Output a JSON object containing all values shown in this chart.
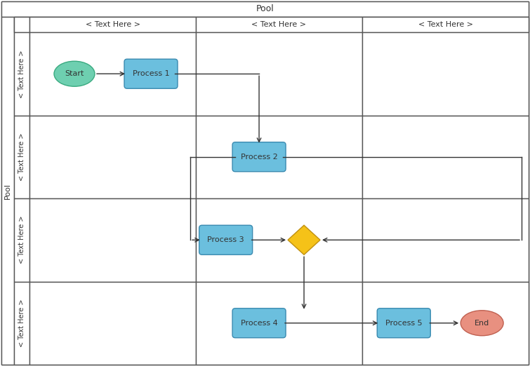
{
  "pool_label": "Pool",
  "side_label": "Pool",
  "col_headers": [
    "< Text Here >",
    "< Text Here >",
    "< Text Here >"
  ],
  "row_headers": [
    "< Text Here >",
    "< Text Here >",
    "< Text Here >",
    "< Text Here >"
  ],
  "bg_color": "#ffffff",
  "start_color": "#6ecfb0",
  "start_edge": "#3aaa80",
  "process_color": "#6bbfde",
  "process_edge": "#3a8ab0",
  "end_color": "#e89080",
  "end_edge": "#c06050",
  "diamond_color": "#f5c218",
  "diamond_edge": "#c09010",
  "arrow_color": "#333333",
  "grid_color": "#555555",
  "text_color": "#333333",
  "line_width": 1.0
}
